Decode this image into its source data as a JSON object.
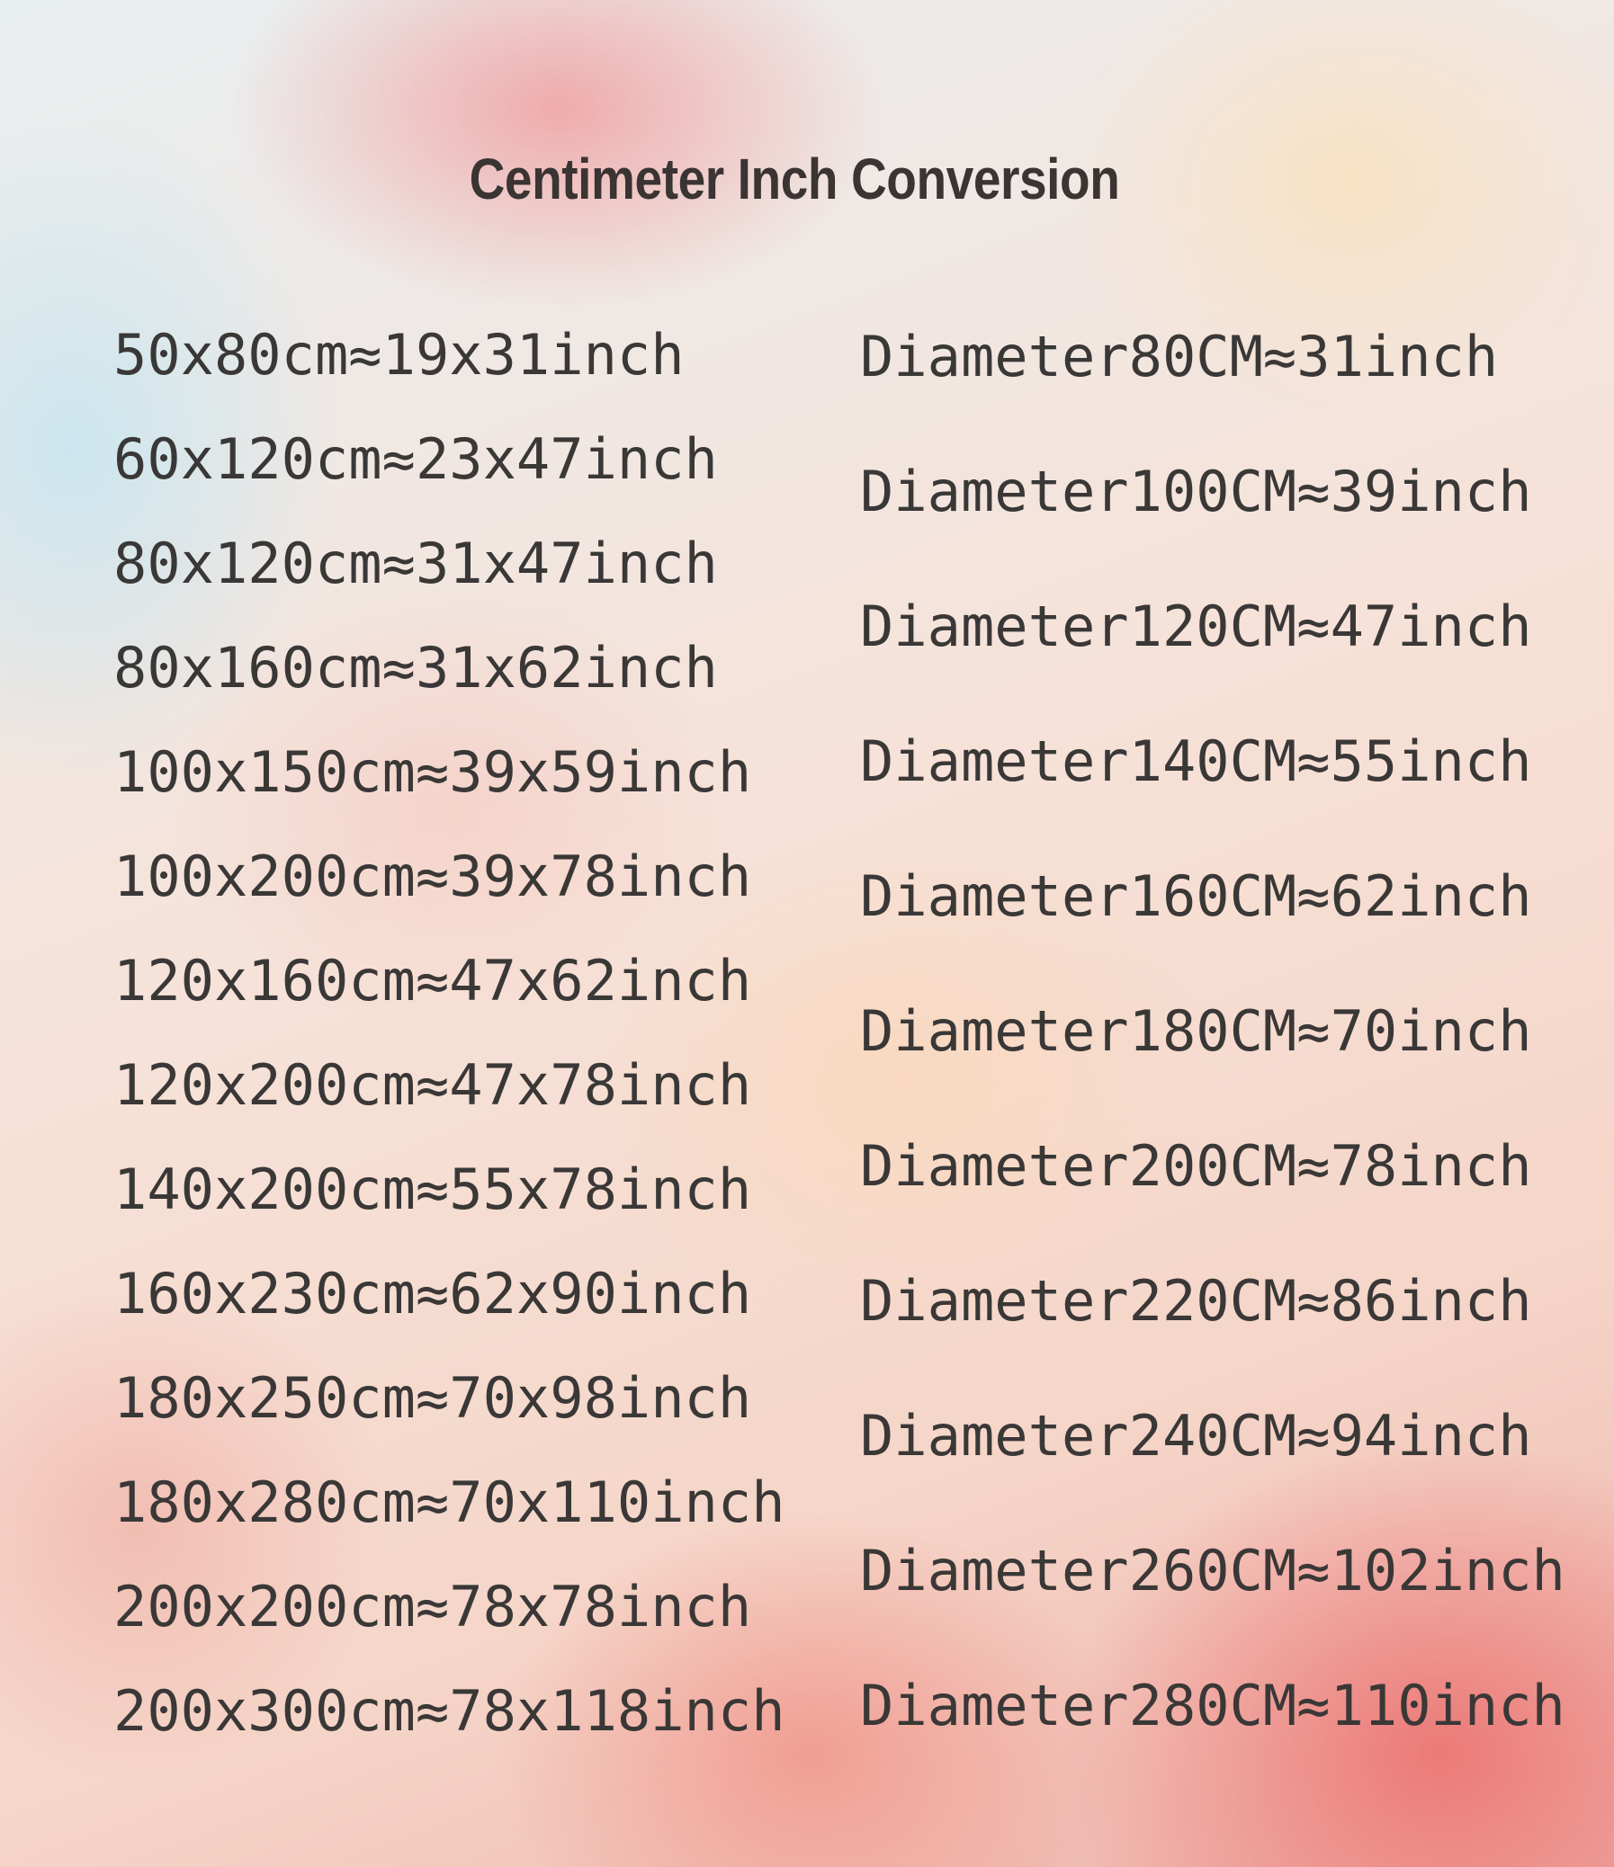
{
  "title": "Centimeter Inch Conversion",
  "rectangular": [
    "50x80cm≈19x31inch",
    "60x120cm≈23x47inch",
    "80x120cm≈31x47inch",
    "80x160cm≈31x62inch",
    "100x150cm≈39x59inch",
    "100x200cm≈39x78inch",
    "120x160cm≈47x62inch",
    "120x200cm≈47x78inch",
    "140x200cm≈55x78inch",
    "160x230cm≈62x90inch",
    "180x250cm≈70x98inch",
    "180x280cm≈70x110inch",
    "200x200cm≈78x78inch",
    "200x300cm≈78x118inch"
  ],
  "round": [
    "Diameter80CM≈31inch",
    "Diameter100CM≈39inch",
    "Diameter120CM≈47inch",
    "Diameter140CM≈55inch",
    "Diameter160CM≈62inch",
    "Diameter180CM≈70inch",
    "Diameter200CM≈78inch",
    "Diameter220CM≈86inch",
    "Diameter240CM≈94inch",
    "Diameter260CM≈102inch",
    "Diameter280CM≈110inch"
  ]
}
